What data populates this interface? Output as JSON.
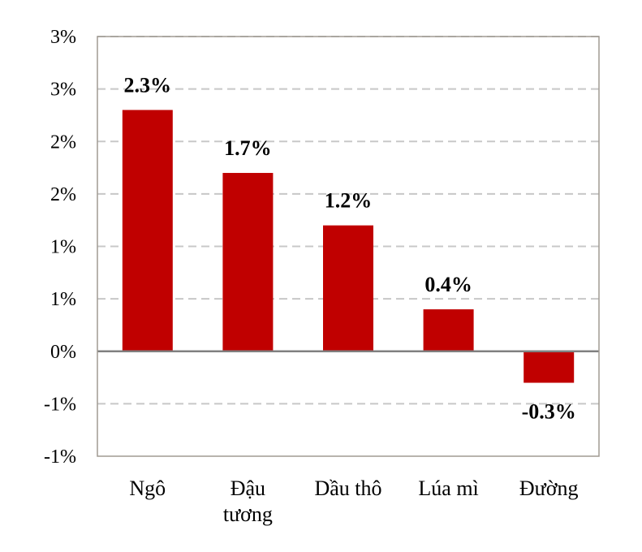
{
  "colors": {
    "bar": "#c00000",
    "grid": "#c8c8c8",
    "frame": "#a09a92",
    "zero_line": "#808080"
  },
  "chart_data": {
    "type": "bar",
    "title": "",
    "xlabel": "",
    "ylabel": "",
    "grid": true,
    "legend": "none",
    "ylim": [
      -1,
      3
    ],
    "y_ticks": [
      3,
      2.5,
      2,
      1.5,
      1,
      0.5,
      0,
      -0.5,
      -1
    ],
    "y_tick_labels": [
      "3%",
      "3%",
      "2%",
      "2%",
      "1%",
      "1%",
      "0%",
      "-1%",
      "-1%"
    ],
    "categories": [
      {
        "lines": [
          "Ngô"
        ]
      },
      {
        "lines": [
          "Đậu",
          "tương"
        ]
      },
      {
        "lines": [
          "Dầu thô"
        ]
      },
      {
        "lines": [
          "Lúa mì"
        ]
      },
      {
        "lines": [
          "Đường"
        ]
      }
    ],
    "values": [
      2.3,
      1.7,
      1.2,
      0.4,
      -0.3
    ],
    "data_labels": [
      "2.3%",
      "1.7%",
      "1.2%",
      "0.4%",
      "-0.3%"
    ]
  }
}
